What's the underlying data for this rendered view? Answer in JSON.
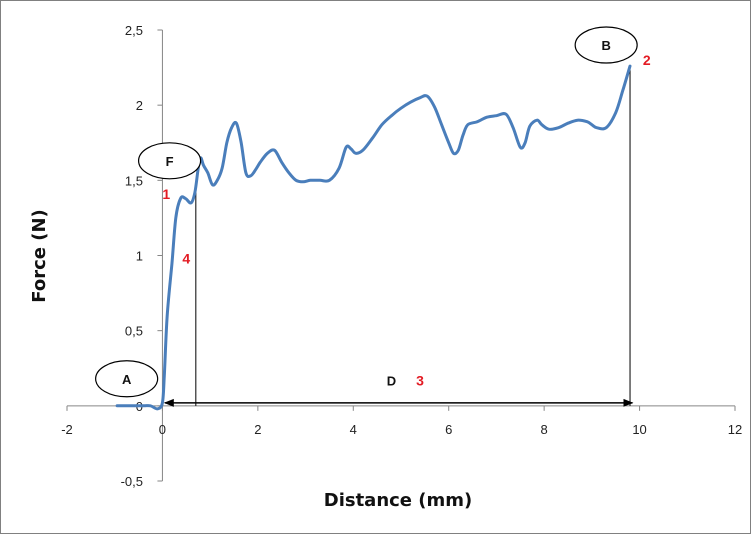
{
  "chart_data": {
    "type": "line",
    "xlabel": "Distance (mm)",
    "ylabel": "Force (N)",
    "xlim": [
      -2,
      12
    ],
    "ylim": [
      -0.5,
      2.5
    ],
    "x_ticks": [
      "-2",
      "0",
      "2",
      "4",
      "6",
      "8",
      "10",
      "12"
    ],
    "y_ticks": [
      "-0,5",
      "0",
      "0,5",
      "1",
      "1,5",
      "2",
      "2,5"
    ],
    "grid": false,
    "legend": "none",
    "series_color": "#4a7ebb",
    "x": [
      -0.95,
      -0.7,
      -0.4,
      -0.25,
      -0.1,
      0.0,
      0.04,
      0.1,
      0.2,
      0.28,
      0.38,
      0.48,
      0.6,
      0.68,
      0.75,
      0.8,
      0.86,
      0.95,
      1.05,
      1.15,
      1.25,
      1.35,
      1.45,
      1.55,
      1.65,
      1.75,
      1.85,
      1.95,
      2.05,
      2.2,
      2.35,
      2.5,
      2.65,
      2.8,
      2.95,
      3.1,
      3.3,
      3.5,
      3.7,
      3.85,
      3.95,
      4.05,
      4.2,
      4.4,
      4.6,
      4.8,
      5.0,
      5.2,
      5.4,
      5.55,
      5.7,
      5.85,
      6.0,
      6.1,
      6.2,
      6.3,
      6.4,
      6.6,
      6.8,
      7.0,
      7.2,
      7.35,
      7.5,
      7.6,
      7.7,
      7.85,
      7.95,
      8.1,
      8.3,
      8.5,
      8.7,
      8.9,
      9.0,
      9.1,
      9.3,
      9.5,
      9.65,
      9.8
    ],
    "y": [
      0.0,
      0.0,
      0.0,
      0.0,
      -0.02,
      0.02,
      0.2,
      0.6,
      0.95,
      1.25,
      1.38,
      1.38,
      1.35,
      1.42,
      1.58,
      1.65,
      1.6,
      1.55,
      1.47,
      1.5,
      1.58,
      1.75,
      1.85,
      1.88,
      1.75,
      1.55,
      1.53,
      1.57,
      1.62,
      1.68,
      1.7,
      1.62,
      1.55,
      1.5,
      1.49,
      1.5,
      1.5,
      1.5,
      1.58,
      1.72,
      1.71,
      1.68,
      1.7,
      1.78,
      1.87,
      1.93,
      1.98,
      2.02,
      2.05,
      2.06,
      1.99,
      1.87,
      1.75,
      1.68,
      1.7,
      1.8,
      1.87,
      1.89,
      1.92,
      1.93,
      1.94,
      1.85,
      1.72,
      1.75,
      1.86,
      1.9,
      1.87,
      1.84,
      1.85,
      1.88,
      1.9,
      1.89,
      1.87,
      1.85,
      1.85,
      1.95,
      2.1,
      2.26
    ],
    "vline_x": [
      0.7,
      9.8
    ],
    "arrow": {
      "x_start": 0.05,
      "x_end": 9.85,
      "y": 0.02
    },
    "annotations": [
      {
        "shape": "ellipse",
        "text": "A",
        "x": -0.75,
        "y": 0.18
      },
      {
        "shape": "ellipse",
        "text": "F",
        "x": 0.15,
        "y": 1.63
      },
      {
        "shape": "ellipse",
        "text": "B",
        "x": 9.3,
        "y": 2.4
      },
      {
        "shape": "text",
        "text": "D",
        "x": 4.8,
        "y": 0.17
      },
      {
        "shape": "number",
        "text": "1",
        "x": 0.08,
        "y": 1.41
      },
      {
        "shape": "number",
        "text": "2",
        "x": 10.15,
        "y": 2.3
      },
      {
        "shape": "number",
        "text": "3",
        "x": 5.4,
        "y": 0.17
      },
      {
        "shape": "number",
        "text": "4",
        "x": 0.5,
        "y": 0.98
      }
    ]
  }
}
